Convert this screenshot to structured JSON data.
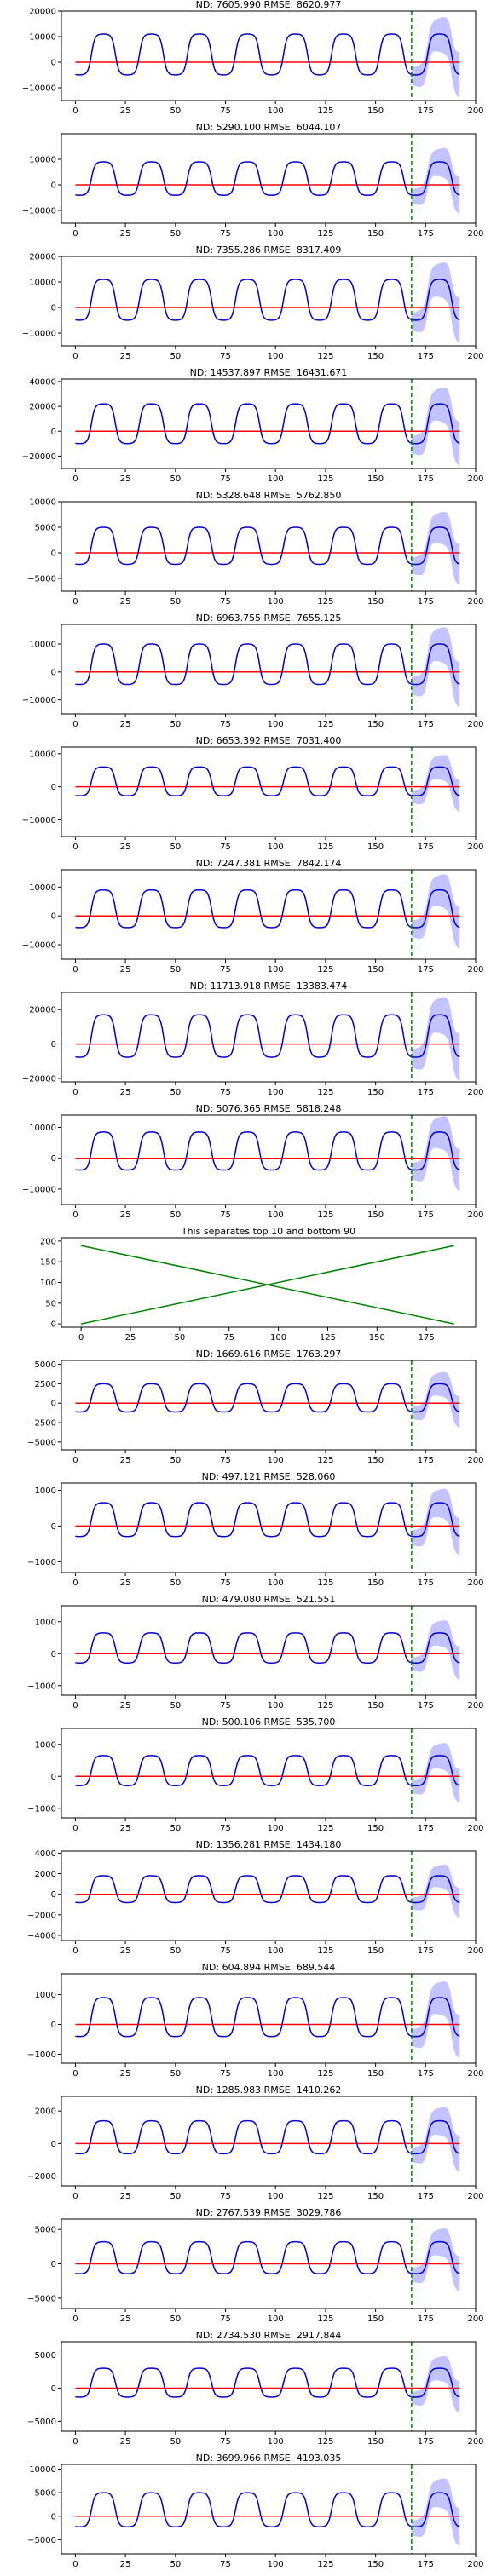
{
  "chart_data": [
    {
      "type": "line",
      "title": "ND:  7605.990 RMSE:  8620.977",
      "ylim": [
        -15000,
        20000
      ],
      "yticks": [
        -10000,
        0,
        10000,
        20000
      ],
      "xlim": [
        -7,
        200
      ],
      "xticks": [
        0,
        25,
        50,
        75,
        100,
        125,
        150,
        175,
        200
      ],
      "amplitude": 11000,
      "dashed_x": 168,
      "grid": false
    },
    {
      "type": "line",
      "title": "ND:  5290.100 RMSE:  6044.107",
      "ylim": [
        -15000,
        20000
      ],
      "yticks": [
        -10000,
        0,
        10000
      ],
      "xlim": [
        -7,
        200
      ],
      "xticks": [
        0,
        25,
        50,
        75,
        100,
        125,
        150,
        175,
        200
      ],
      "amplitude": 9000,
      "dashed_x": 168,
      "grid": false
    },
    {
      "type": "line",
      "title": "ND:  7355.286 RMSE:  8317.409",
      "ylim": [
        -15000,
        20000
      ],
      "yticks": [
        -10000,
        0,
        10000,
        20000
      ],
      "xlim": [
        -7,
        200
      ],
      "xticks": [
        0,
        25,
        50,
        75,
        100,
        125,
        150,
        175,
        200
      ],
      "amplitude": 11000,
      "dashed_x": 168,
      "grid": false
    },
    {
      "type": "line",
      "title": "ND:  14537.897 RMSE:  16431.671",
      "ylim": [
        -30000,
        42000
      ],
      "yticks": [
        -20000,
        0,
        20000,
        40000
      ],
      "xlim": [
        -7,
        200
      ],
      "xticks": [
        0,
        25,
        50,
        75,
        100,
        125,
        150,
        175,
        200
      ],
      "amplitude": 22000,
      "dashed_x": 168,
      "grid": false
    },
    {
      "type": "line",
      "title": "ND:  5328.648 RMSE:  5762.850",
      "ylim": [
        -7500,
        10000
      ],
      "yticks": [
        -5000,
        0,
        5000,
        10000
      ],
      "xlim": [
        -7,
        200
      ],
      "xticks": [
        0,
        25,
        50,
        75,
        100,
        125,
        150,
        175,
        200
      ],
      "amplitude": 5000,
      "dashed_x": 168,
      "grid": false
    },
    {
      "type": "line",
      "title": "ND:  6963.755 RMSE:  7655.125",
      "ylim": [
        -15000,
        17000
      ],
      "yticks": [
        -10000,
        0,
        10000
      ],
      "xlim": [
        -7,
        200
      ],
      "xticks": [
        0,
        25,
        50,
        75,
        100,
        125,
        150,
        175,
        200
      ],
      "amplitude": 10000,
      "dashed_x": 168,
      "grid": false
    },
    {
      "type": "line",
      "title": "ND:  6653.392 RMSE:  7031.400",
      "ylim": [
        -15000,
        12000
      ],
      "yticks": [
        -10000,
        0,
        10000
      ],
      "xlim": [
        -7,
        200
      ],
      "xticks": [
        0,
        25,
        50,
        75,
        100,
        125,
        150,
        175,
        200
      ],
      "amplitude": 6000,
      "dashed_x": 168,
      "grid": false
    },
    {
      "type": "line",
      "title": "ND:  7247.381 RMSE:  7842.174",
      "ylim": [
        -15000,
        16000
      ],
      "yticks": [
        -10000,
        0,
        10000
      ],
      "xlim": [
        -7,
        200
      ],
      "xticks": [
        0,
        25,
        50,
        75,
        100,
        125,
        150,
        175,
        200
      ],
      "amplitude": 9000,
      "dashed_x": 168,
      "grid": false
    },
    {
      "type": "line",
      "title": "ND:  11713.918 RMSE:  13383.474",
      "ylim": [
        -22000,
        30000
      ],
      "yticks": [
        -20000,
        0,
        20000
      ],
      "xlim": [
        -7,
        200
      ],
      "xticks": [
        0,
        25,
        50,
        75,
        100,
        125,
        150,
        175,
        200
      ],
      "amplitude": 17000,
      "dashed_x": 168,
      "grid": false
    },
    {
      "type": "line",
      "title": "ND:  5076.365 RMSE:  5818.248",
      "ylim": [
        -15000,
        14000
      ],
      "yticks": [
        -10000,
        0,
        10000
      ],
      "xlim": [
        -7,
        200
      ],
      "xticks": [
        0,
        25,
        50,
        75,
        100,
        125,
        150,
        175,
        200
      ],
      "amplitude": 8500,
      "dashed_x": 168,
      "grid": false
    },
    {
      "type": "line",
      "title": "This separates top 10 and bottom 90",
      "ylim": [
        -8,
        208
      ],
      "yticks": [
        0,
        50,
        100,
        150,
        200
      ],
      "xlim": [
        -10,
        200
      ],
      "xticks": [
        0,
        25,
        50,
        75,
        100,
        125,
        150,
        175
      ],
      "separator": true,
      "series": [
        {
          "x": [
            0,
            189
          ],
          "y": [
            0,
            189
          ]
        },
        {
          "x": [
            0,
            189
          ],
          "y": [
            189,
            0
          ]
        }
      ],
      "grid": false
    },
    {
      "type": "line",
      "title": "ND:  1669.616 RMSE:  1763.297",
      "ylim": [
        -6000,
        5500
      ],
      "yticks": [
        -5000,
        -2500,
        0,
        2500,
        5000
      ],
      "xlim": [
        -7,
        200
      ],
      "xticks": [
        0,
        25,
        50,
        75,
        100,
        125,
        150,
        175,
        200
      ],
      "amplitude": 2500,
      "dashed_x": 168,
      "grid": false
    },
    {
      "type": "line",
      "title": "ND:  497.121 RMSE:  528.060",
      "ylim": [
        -1300,
        1200
      ],
      "yticks": [
        -1000,
        0,
        1000
      ],
      "xlim": [
        -7,
        200
      ],
      "xticks": [
        0,
        25,
        50,
        75,
        100,
        125,
        150,
        175,
        200
      ],
      "amplitude": 650,
      "dashed_x": 168,
      "grid": false
    },
    {
      "type": "line",
      "title": "ND:  479.080 RMSE:  521.551",
      "ylim": [
        -1300,
        1500
      ],
      "yticks": [
        -1000,
        0,
        1000
      ],
      "xlim": [
        -7,
        200
      ],
      "xticks": [
        0,
        25,
        50,
        75,
        100,
        125,
        150,
        175,
        200
      ],
      "amplitude": 650,
      "dashed_x": 168,
      "grid": false
    },
    {
      "type": "line",
      "title": "ND:  500.106 RMSE:  535.700",
      "ylim": [
        -1300,
        1500
      ],
      "yticks": [
        -1000,
        0,
        1000
      ],
      "xlim": [
        -7,
        200
      ],
      "xticks": [
        0,
        25,
        50,
        75,
        100,
        125,
        150,
        175,
        200
      ],
      "amplitude": 650,
      "dashed_x": 168,
      "grid": false
    },
    {
      "type": "line",
      "title": "ND:  1356.281 RMSE:  1434.180",
      "ylim": [
        -4500,
        4200
      ],
      "yticks": [
        -4000,
        -2000,
        0,
        2000,
        4000
      ],
      "xlim": [
        -7,
        200
      ],
      "xticks": [
        0,
        25,
        50,
        75,
        100,
        125,
        150,
        175,
        200
      ],
      "amplitude": 1800,
      "dashed_x": 168,
      "grid": false
    },
    {
      "type": "line",
      "title": "ND:  604.894 RMSE:  689.544",
      "ylim": [
        -1300,
        1700
      ],
      "yticks": [
        -1000,
        0,
        1000
      ],
      "xlim": [
        -7,
        200
      ],
      "xticks": [
        0,
        25,
        50,
        75,
        100,
        125,
        150,
        175,
        200
      ],
      "amplitude": 900,
      "dashed_x": 168,
      "grid": false
    },
    {
      "type": "line",
      "title": "ND:  1285.983 RMSE:  1410.262",
      "ylim": [
        -2600,
        2900
      ],
      "yticks": [
        -2000,
        0,
        2000
      ],
      "xlim": [
        -7,
        200
      ],
      "xticks": [
        0,
        25,
        50,
        75,
        100,
        125,
        150,
        175,
        200
      ],
      "amplitude": 1400,
      "dashed_x": 168,
      "grid": false
    },
    {
      "type": "line",
      "title": "ND:  2767.539 RMSE:  3029.786",
      "ylim": [
        -6500,
        6500
      ],
      "yticks": [
        -5000,
        0,
        5000
      ],
      "xlim": [
        -7,
        200
      ],
      "xticks": [
        0,
        25,
        50,
        75,
        100,
        125,
        150,
        175,
        200
      ],
      "amplitude": 3200,
      "dashed_x": 168,
      "grid": false
    },
    {
      "type": "line",
      "title": "ND:  2734.530 RMSE:  2917.844",
      "ylim": [
        -6500,
        7000
      ],
      "yticks": [
        -5000,
        0,
        5000
      ],
      "xlim": [
        -7,
        200
      ],
      "xticks": [
        0,
        25,
        50,
        75,
        100,
        125,
        150,
        175,
        200
      ],
      "amplitude": 3000,
      "dashed_x": 168,
      "grid": false
    },
    {
      "type": "line",
      "title": "ND:  3699.966 RMSE:  4193.035",
      "ylim": [
        -8000,
        11000
      ],
      "yticks": [
        -5000,
        0,
        5000,
        10000
      ],
      "xlim": [
        -7,
        200
      ],
      "xticks": [
        0,
        25,
        50,
        75,
        100,
        125,
        150,
        175,
        200
      ],
      "amplitude": 5000,
      "dashed_x": 168,
      "grid": false
    }
  ],
  "colors": {
    "history": "#0000cc",
    "prediction": "#ff0000",
    "band": "#b8b8ff",
    "dashed": "#008000",
    "separator_lines": "#008000"
  }
}
